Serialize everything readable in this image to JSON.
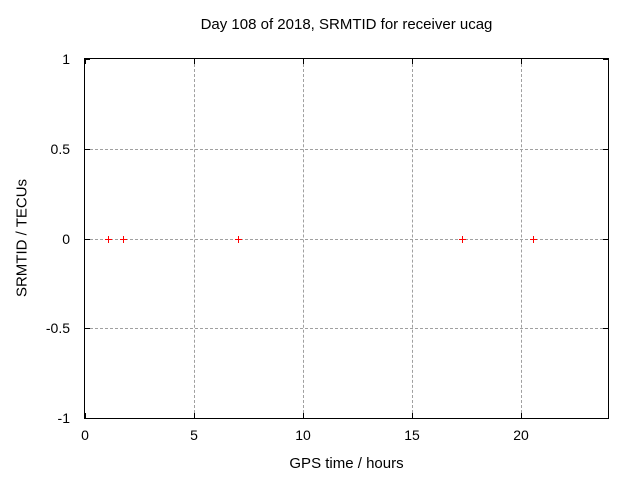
{
  "title": "Day 108 of 2018, SRMTID for receiver ucag",
  "axes": {
    "xlabel": "GPS time / hours",
    "ylabel": "SRMTID / TECUs"
  },
  "chart_data": {
    "type": "scatter",
    "title": "Day 108 of 2018, SRMTID for receiver ucag",
    "xlabel": "GPS time / hours",
    "ylabel": "SRMTID / TECUs",
    "xlim": [
      0,
      24
    ],
    "ylim": [
      -1,
      1
    ],
    "x_ticks": [
      0,
      5,
      10,
      15,
      20
    ],
    "x_tick_labels": [
      "0",
      "5",
      "10",
      "15",
      "20"
    ],
    "y_ticks": [
      1,
      0.5,
      0,
      -0.5,
      -1
    ],
    "y_tick_labels": [
      "1",
      "0.5",
      "0",
      "-0.5",
      "-1"
    ],
    "grid": true,
    "legend": "none",
    "series": [
      {
        "name": "SRMTID",
        "marker": "plus",
        "color": "#ff0000",
        "points": [
          {
            "x": 1.05,
            "y": 0
          },
          {
            "x": 1.74,
            "y": 0
          },
          {
            "x": 7.04,
            "y": 0
          },
          {
            "x": 17.29,
            "y": 0
          },
          {
            "x": 20.58,
            "y": 0
          }
        ]
      }
    ]
  },
  "colors": {
    "background": "#ffffff",
    "border": "#000000",
    "grid": "#a0a0a0",
    "marker": "#ff0000",
    "text": "#000000"
  }
}
